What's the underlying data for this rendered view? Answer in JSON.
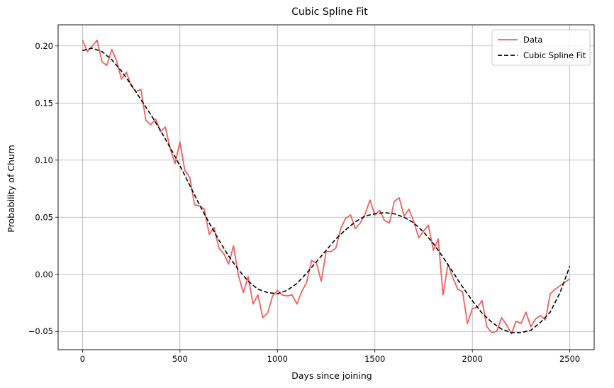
{
  "chart_data": {
    "type": "line",
    "title": "Cubic Spline Fit",
    "xlabel": "Days since joining",
    "ylabel": "Probability of Churn",
    "xlim": [
      -125,
      2625
    ],
    "ylim": [
      -0.066,
      0.2185
    ],
    "xticks": [
      0,
      500,
      1000,
      1500,
      2000,
      2500
    ],
    "xtick_labels": [
      "0",
      "500",
      "1000",
      "1500",
      "2000",
      "2500"
    ],
    "yticks": [
      -0.05,
      0.0,
      0.05,
      0.1,
      0.15,
      0.2
    ],
    "ytick_labels": [
      "−0.05",
      "0.00",
      "0.05",
      "0.10",
      "0.15",
      "0.20"
    ],
    "grid": true,
    "legend_position": "top-right",
    "series": [
      {
        "name": "Data",
        "color": "#f06060",
        "style": "solid",
        "x": [
          0,
          25,
          50,
          75,
          100,
          125,
          150,
          175,
          200,
          225,
          250,
          275,
          300,
          325,
          350,
          375,
          400,
          425,
          450,
          475,
          500,
          525,
          550,
          575,
          600,
          625,
          650,
          675,
          700,
          725,
          750,
          775,
          800,
          825,
          850,
          875,
          900,
          925,
          950,
          975,
          1000,
          1025,
          1050,
          1075,
          1100,
          1125,
          1150,
          1175,
          1200,
          1225,
          1250,
          1275,
          1300,
          1325,
          1350,
          1375,
          1400,
          1425,
          1450,
          1475,
          1500,
          1525,
          1550,
          1575,
          1600,
          1625,
          1650,
          1675,
          1700,
          1725,
          1750,
          1775,
          1800,
          1825,
          1850,
          1875,
          1900,
          1925,
          1950,
          1975,
          2000,
          2025,
          2050,
          2075,
          2100,
          2125,
          2150,
          2175,
          2200,
          2225,
          2250,
          2275,
          2300,
          2325,
          2350,
          2375,
          2400,
          2425,
          2450,
          2475,
          2500
        ],
        "y": [
          0.205,
          0.195,
          0.2,
          0.205,
          0.186,
          0.183,
          0.197,
          0.187,
          0.171,
          0.177,
          0.165,
          0.16,
          0.162,
          0.135,
          0.131,
          0.136,
          0.125,
          0.129,
          0.11,
          0.097,
          0.116,
          0.091,
          0.085,
          0.061,
          0.06,
          0.057,
          0.035,
          0.041,
          0.023,
          0.018,
          0.009,
          0.025,
          -0.001,
          -0.016,
          -0.002,
          -0.026,
          -0.018,
          -0.038,
          -0.034,
          -0.019,
          -0.014,
          -0.018,
          -0.019,
          -0.018,
          -0.026,
          -0.015,
          -0.007,
          0.012,
          0.01,
          -0.006,
          0.02,
          0.02,
          0.023,
          0.04,
          0.049,
          0.052,
          0.04,
          0.045,
          0.053,
          0.065,
          0.052,
          0.056,
          0.047,
          0.045,
          0.064,
          0.067,
          0.051,
          0.057,
          0.046,
          0.032,
          0.038,
          0.043,
          0.021,
          0.031,
          -0.018,
          0.009,
          -0.003,
          -0.013,
          -0.015,
          -0.043,
          -0.03,
          -0.029,
          -0.023,
          -0.046,
          -0.051,
          -0.05,
          -0.038,
          -0.044,
          -0.052,
          -0.041,
          -0.043,
          -0.033,
          -0.046,
          -0.039,
          -0.036,
          -0.04,
          -0.017,
          -0.013,
          -0.01,
          -0.007,
          -0.004
        ]
      },
      {
        "name": "Cubic Spline Fit",
        "color": "#000000",
        "style": "dashed",
        "x": [
          0,
          50,
          100,
          150,
          200,
          250,
          300,
          350,
          400,
          450,
          500,
          550,
          600,
          650,
          700,
          750,
          800,
          850,
          900,
          950,
          1000,
          1050,
          1100,
          1150,
          1200,
          1250,
          1300,
          1350,
          1400,
          1450,
          1500,
          1550,
          1600,
          1650,
          1700,
          1750,
          1800,
          1850,
          1900,
          1950,
          2000,
          2050,
          2100,
          2150,
          2200,
          2250,
          2300,
          2350,
          2400,
          2450,
          2500
        ],
        "y": [
          0.196,
          0.198,
          0.195,
          0.188,
          0.178,
          0.166,
          0.153,
          0.14,
          0.126,
          0.111,
          0.095,
          0.078,
          0.061,
          0.045,
          0.03,
          0.016,
          0.004,
          -0.006,
          -0.013,
          -0.016,
          -0.017,
          -0.014,
          -0.008,
          0.001,
          0.011,
          0.021,
          0.031,
          0.039,
          0.046,
          0.051,
          0.053,
          0.054,
          0.053,
          0.05,
          0.045,
          0.037,
          0.027,
          0.015,
          0.002,
          -0.011,
          -0.023,
          -0.034,
          -0.042,
          -0.048,
          -0.051,
          -0.051,
          -0.049,
          -0.042,
          -0.033,
          -0.016,
          0.007
        ]
      }
    ]
  }
}
